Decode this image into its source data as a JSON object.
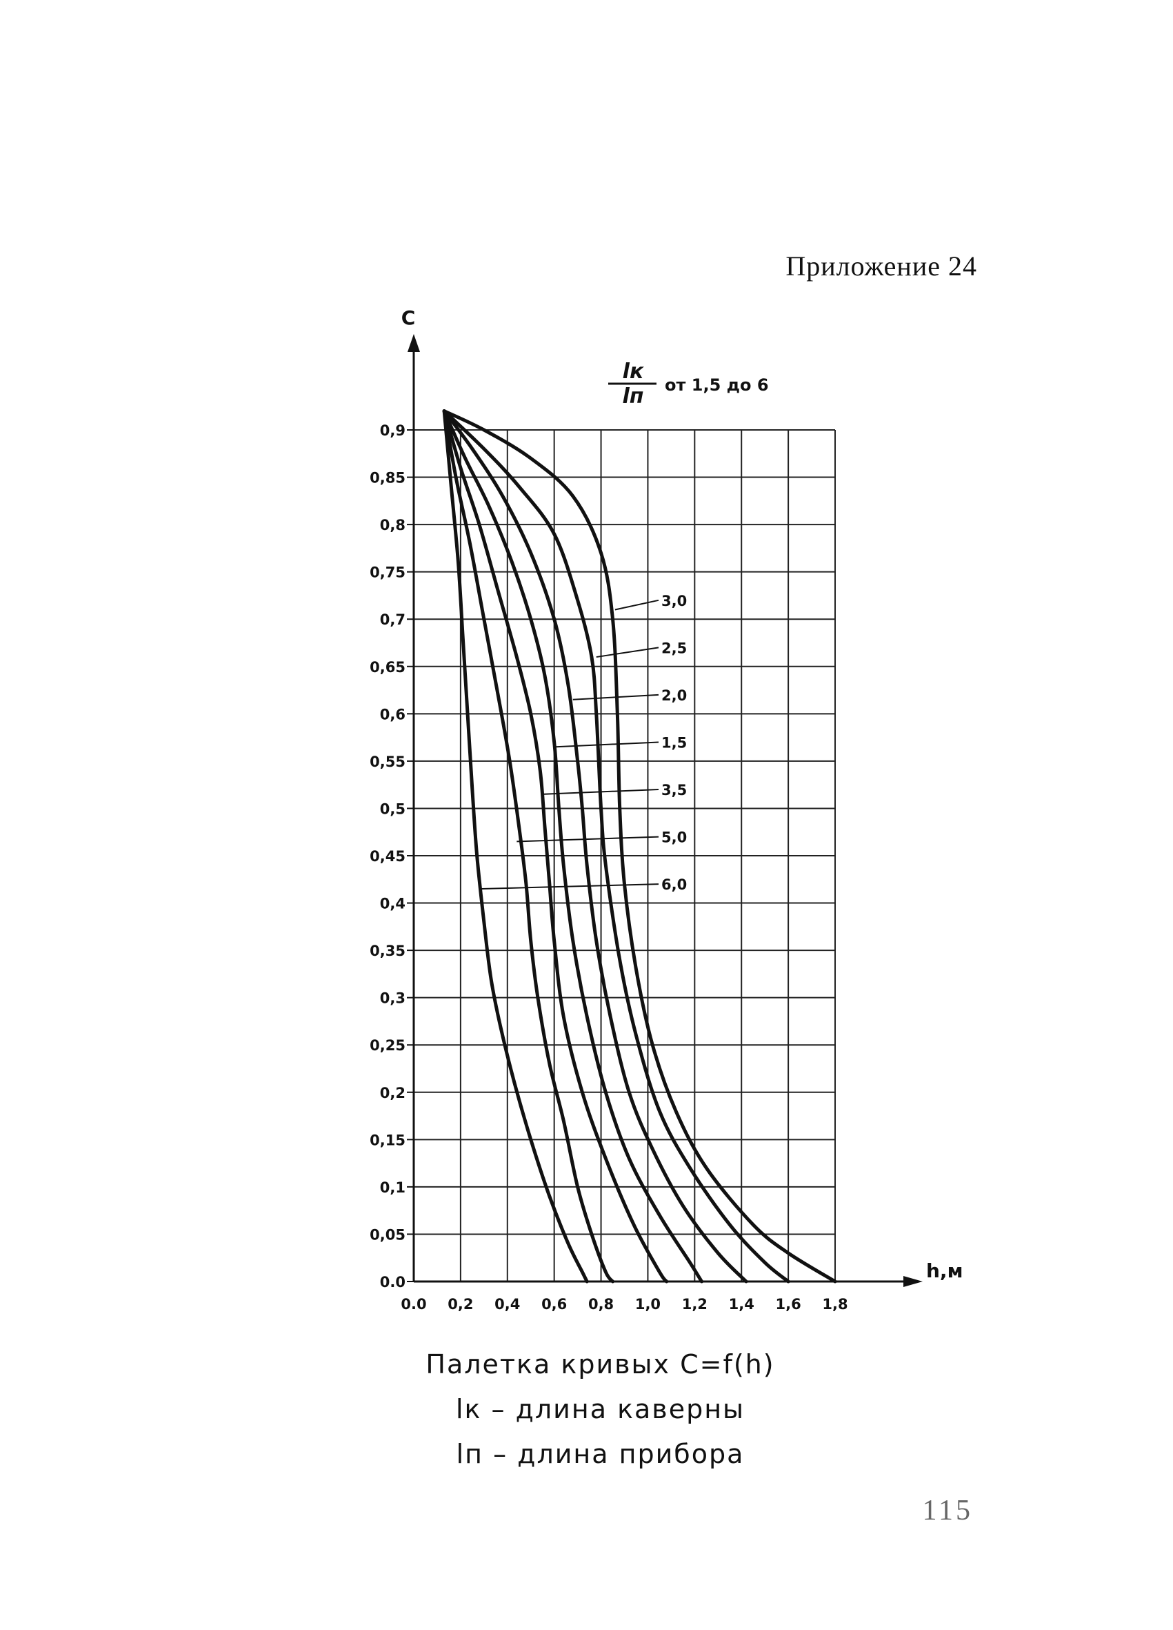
{
  "header": {
    "appendix": "Приложение  24"
  },
  "chart_data": {
    "type": "line",
    "title": "",
    "xlabel": "h,м",
    "ylabel": "C",
    "xlim": [
      0.0,
      1.8
    ],
    "ylim": [
      0.0,
      0.9
    ],
    "grid": true,
    "x_ticks": [
      {
        "v": 0.0,
        "label": "0.0"
      },
      {
        "v": 0.2,
        "label": "0,2"
      },
      {
        "v": 0.4,
        "label": "0,4"
      },
      {
        "v": 0.6,
        "label": "0,6"
      },
      {
        "v": 0.8,
        "label": "0,8"
      },
      {
        "v": 1.0,
        "label": "1,0"
      },
      {
        "v": 1.2,
        "label": "1,2"
      },
      {
        "v": 1.4,
        "label": "1,4"
      },
      {
        "v": 1.6,
        "label": "1,6"
      },
      {
        "v": 1.8,
        "label": "1,8"
      }
    ],
    "y_ticks": [
      {
        "v": 0.0,
        "label": "0.0"
      },
      {
        "v": 0.05,
        "label": "0,05"
      },
      {
        "v": 0.1,
        "label": "0,1"
      },
      {
        "v": 0.15,
        "label": "0,15"
      },
      {
        "v": 0.2,
        "label": "0,2"
      },
      {
        "v": 0.25,
        "label": "0,25"
      },
      {
        "v": 0.3,
        "label": "0,3"
      },
      {
        "v": 0.35,
        "label": "0,35"
      },
      {
        "v": 0.4,
        "label": "0,4"
      },
      {
        "v": 0.45,
        "label": "0,45"
      },
      {
        "v": 0.5,
        "label": "0,5"
      },
      {
        "v": 0.55,
        "label": "0,55"
      },
      {
        "v": 0.6,
        "label": "0,6"
      },
      {
        "v": 0.65,
        "label": "0,65"
      },
      {
        "v": 0.7,
        "label": "0,7"
      },
      {
        "v": 0.75,
        "label": "0,75"
      },
      {
        "v": 0.8,
        "label": "0,8"
      },
      {
        "v": 0.85,
        "label": "0,85"
      },
      {
        "v": 0.9,
        "label": "0,9"
      }
    ],
    "legend": {
      "title_num": "lк",
      "title_den": "lп",
      "title_range": "от 1,5 до 6"
    },
    "series": [
      {
        "name": "3,0",
        "label_y": 0.72,
        "leader_to": [
          0.86,
          0.71
        ],
        "points": [
          [
            0.13,
            0.92
          ],
          [
            0.3,
            0.9
          ],
          [
            0.5,
            0.87
          ],
          [
            0.68,
            0.83
          ],
          [
            0.8,
            0.77
          ],
          [
            0.85,
            0.7
          ],
          [
            0.87,
            0.6
          ],
          [
            0.88,
            0.5
          ],
          [
            0.9,
            0.42
          ],
          [
            0.95,
            0.33
          ],
          [
            1.02,
            0.25
          ],
          [
            1.12,
            0.18
          ],
          [
            1.25,
            0.12
          ],
          [
            1.45,
            0.06
          ],
          [
            1.6,
            0.03
          ],
          [
            1.8,
            0.0
          ]
        ]
      },
      {
        "name": "2,5",
        "label_y": 0.67,
        "leader_to": [
          0.78,
          0.66
        ],
        "points": [
          [
            0.13,
            0.92
          ],
          [
            0.3,
            0.88
          ],
          [
            0.45,
            0.84
          ],
          [
            0.6,
            0.79
          ],
          [
            0.7,
            0.72
          ],
          [
            0.76,
            0.66
          ],
          [
            0.78,
            0.6
          ],
          [
            0.8,
            0.5
          ],
          [
            0.82,
            0.44
          ],
          [
            0.88,
            0.34
          ],
          [
            0.95,
            0.26
          ],
          [
            1.05,
            0.18
          ],
          [
            1.18,
            0.12
          ],
          [
            1.35,
            0.06
          ],
          [
            1.5,
            0.02
          ],
          [
            1.6,
            0.0
          ]
        ]
      },
      {
        "name": "2,0",
        "label_y": 0.62,
        "leader_to": [
          0.68,
          0.615
        ],
        "points": [
          [
            0.13,
            0.92
          ],
          [
            0.25,
            0.88
          ],
          [
            0.38,
            0.83
          ],
          [
            0.5,
            0.77
          ],
          [
            0.6,
            0.7
          ],
          [
            0.66,
            0.63
          ],
          [
            0.7,
            0.55
          ],
          [
            0.72,
            0.5
          ],
          [
            0.74,
            0.44
          ],
          [
            0.78,
            0.36
          ],
          [
            0.84,
            0.28
          ],
          [
            0.92,
            0.2
          ],
          [
            1.02,
            0.14
          ],
          [
            1.15,
            0.08
          ],
          [
            1.3,
            0.03
          ],
          [
            1.42,
            0.0
          ]
        ]
      },
      {
        "name": "1,5",
        "label_y": 0.57,
        "leader_to": [
          0.6,
          0.565
        ],
        "points": [
          [
            0.13,
            0.92
          ],
          [
            0.22,
            0.87
          ],
          [
            0.32,
            0.82
          ],
          [
            0.42,
            0.76
          ],
          [
            0.5,
            0.7
          ],
          [
            0.56,
            0.64
          ],
          [
            0.6,
            0.57
          ],
          [
            0.62,
            0.5
          ],
          [
            0.64,
            0.44
          ],
          [
            0.68,
            0.36
          ],
          [
            0.74,
            0.28
          ],
          [
            0.82,
            0.2
          ],
          [
            0.92,
            0.13
          ],
          [
            1.05,
            0.07
          ],
          [
            1.18,
            0.02
          ],
          [
            1.23,
            0.0
          ]
        ]
      },
      {
        "name": "3,5",
        "label_y": 0.52,
        "leader_to": [
          0.55,
          0.515
        ],
        "points": [
          [
            0.13,
            0.92
          ],
          [
            0.2,
            0.86
          ],
          [
            0.28,
            0.8
          ],
          [
            0.36,
            0.73
          ],
          [
            0.44,
            0.66
          ],
          [
            0.5,
            0.6
          ],
          [
            0.54,
            0.54
          ],
          [
            0.56,
            0.48
          ],
          [
            0.58,
            0.42
          ],
          [
            0.6,
            0.36
          ],
          [
            0.64,
            0.28
          ],
          [
            0.72,
            0.2
          ],
          [
            0.82,
            0.13
          ],
          [
            0.94,
            0.06
          ],
          [
            1.05,
            0.01
          ],
          [
            1.08,
            0.0
          ]
        ]
      },
      {
        "name": "5,0",
        "label_y": 0.47,
        "leader_to": [
          0.44,
          0.465
        ],
        "points": [
          [
            0.13,
            0.92
          ],
          [
            0.18,
            0.85
          ],
          [
            0.24,
            0.78
          ],
          [
            0.3,
            0.7
          ],
          [
            0.36,
            0.62
          ],
          [
            0.41,
            0.55
          ],
          [
            0.45,
            0.48
          ],
          [
            0.48,
            0.42
          ],
          [
            0.5,
            0.36
          ],
          [
            0.53,
            0.3
          ],
          [
            0.58,
            0.23
          ],
          [
            0.64,
            0.17
          ],
          [
            0.7,
            0.1
          ],
          [
            0.76,
            0.05
          ],
          [
            0.82,
            0.01
          ],
          [
            0.85,
            0.0
          ]
        ]
      },
      {
        "name": "6,0",
        "label_y": 0.42,
        "leader_to": [
          0.29,
          0.415
        ],
        "points": [
          [
            0.13,
            0.92
          ],
          [
            0.16,
            0.84
          ],
          [
            0.19,
            0.76
          ],
          [
            0.21,
            0.68
          ],
          [
            0.23,
            0.6
          ],
          [
            0.25,
            0.52
          ],
          [
            0.27,
            0.45
          ],
          [
            0.3,
            0.38
          ],
          [
            0.33,
            0.32
          ],
          [
            0.37,
            0.27
          ],
          [
            0.43,
            0.21
          ],
          [
            0.5,
            0.15
          ],
          [
            0.58,
            0.09
          ],
          [
            0.66,
            0.04
          ],
          [
            0.72,
            0.01
          ],
          [
            0.74,
            0.0
          ]
        ]
      }
    ]
  },
  "caption": {
    "line1": "Палетка кривых  C=f(h)",
    "line2": "lк – длина каверны",
    "line3": "lп – длина прибора"
  },
  "page_number": "115"
}
